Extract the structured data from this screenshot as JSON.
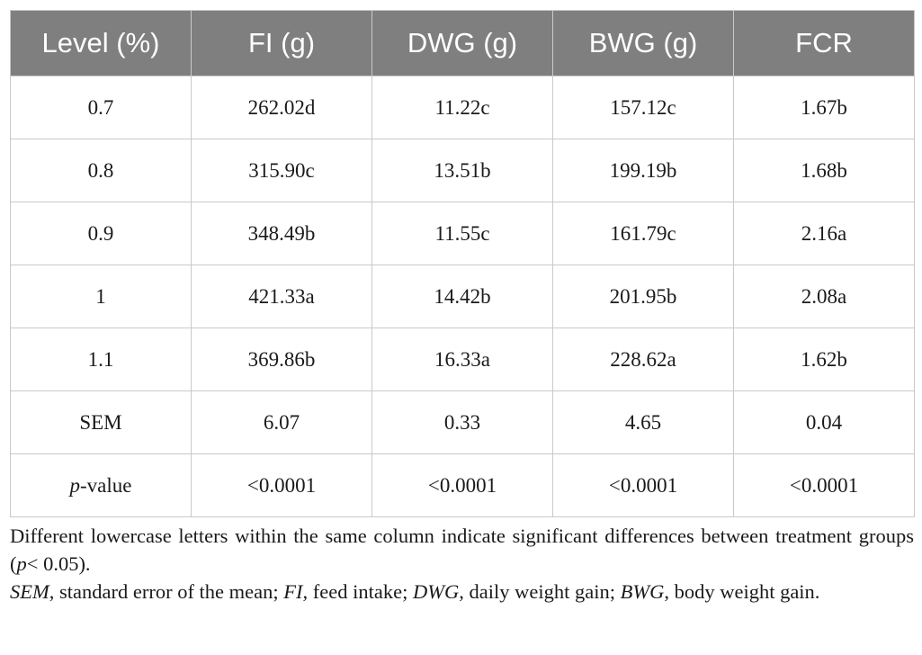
{
  "table": {
    "headers": [
      "Level (%)",
      "FI (g)",
      "DWG (g)",
      "BWG (g)",
      "FCR"
    ],
    "rows": [
      [
        "0.7",
        "262.02d",
        "11.22c",
        "157.12c",
        "1.67b"
      ],
      [
        "0.8",
        "315.90c",
        "13.51b",
        "199.19b",
        "1.68b"
      ],
      [
        "0.9",
        "348.49b",
        "11.55c",
        "161.79c",
        "2.16a"
      ],
      [
        "1",
        "421.33a",
        "14.42b",
        "201.95b",
        "2.08a"
      ],
      [
        "1.1",
        "369.86b",
        "16.33a",
        "228.62a",
        "1.62b"
      ],
      [
        "SEM",
        "6.07",
        "0.33",
        "4.65",
        "0.04"
      ],
      [
        "",
        "<0.0001",
        "<0.0001",
        "<0.0001",
        "<0.0001"
      ]
    ],
    "pvalue_label": {
      "italic": "p",
      "rest": "-value"
    }
  },
  "notes": {
    "line1": {
      "pre": "Different lowercase letters within the same column indicate significant differences between treatment groups (",
      "p": "p",
      "post": "< 0.05)."
    },
    "line2": [
      {
        "term": "SEM",
        "def": ", standard error of the mean; "
      },
      {
        "term": "FI",
        "def": ", feed intake; "
      },
      {
        "term": "DWG",
        "def": ", daily weight gain; "
      },
      {
        "term": "BWG",
        "def": ", body weight gain."
      }
    ]
  }
}
